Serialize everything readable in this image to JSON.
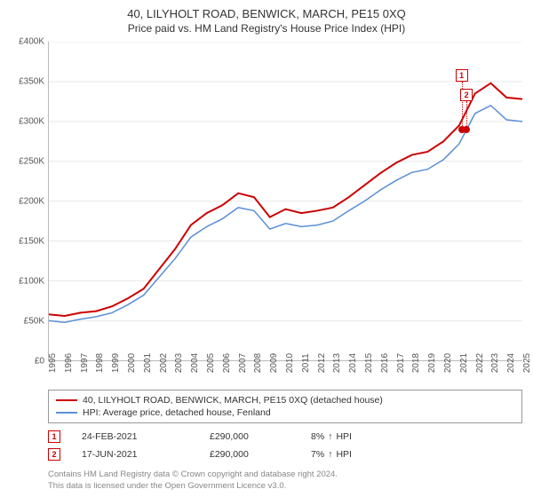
{
  "title": "40, LILYHOLT ROAD, BENWICK, MARCH, PE15 0XQ",
  "subtitle": "Price paid vs. HM Land Registry's House Price Index (HPI)",
  "chart": {
    "type": "line",
    "background_color": "#ffffff",
    "grid_color": "#e8e8e8",
    "axis_color": "#bbbbbb",
    "label_fontsize": 10,
    "title_fontsize": 13,
    "x": {
      "min": 1995,
      "max": 2025,
      "ticks": [
        1995,
        1996,
        1997,
        1998,
        1999,
        2000,
        2001,
        2002,
        2003,
        2004,
        2005,
        2006,
        2007,
        2008,
        2009,
        2010,
        2011,
        2012,
        2013,
        2014,
        2015,
        2016,
        2017,
        2018,
        2019,
        2020,
        2021,
        2022,
        2023,
        2024,
        2025
      ]
    },
    "y": {
      "min": 0,
      "max": 400000,
      "ticks": [
        0,
        50000,
        100000,
        150000,
        200000,
        250000,
        300000,
        350000,
        400000
      ],
      "tick_labels": [
        "£0",
        "£50K",
        "£100K",
        "£150K",
        "£200K",
        "£250K",
        "£300K",
        "£350K",
        "£400K"
      ]
    },
    "series": [
      {
        "name": "property",
        "label": "40, LILYHOLT ROAD, BENWICK, MARCH, PE15 0XQ (detached house)",
        "color": "#cc0000",
        "width": 2,
        "points": [
          [
            1995,
            58000
          ],
          [
            1996,
            56000
          ],
          [
            1997,
            60000
          ],
          [
            1998,
            62000
          ],
          [
            1999,
            68000
          ],
          [
            2000,
            78000
          ],
          [
            2001,
            90000
          ],
          [
            2002,
            115000
          ],
          [
            2003,
            140000
          ],
          [
            2004,
            170000
          ],
          [
            2005,
            185000
          ],
          [
            2006,
            195000
          ],
          [
            2007,
            210000
          ],
          [
            2008,
            205000
          ],
          [
            2009,
            180000
          ],
          [
            2010,
            190000
          ],
          [
            2011,
            185000
          ],
          [
            2012,
            188000
          ],
          [
            2013,
            192000
          ],
          [
            2014,
            205000
          ],
          [
            2015,
            220000
          ],
          [
            2016,
            235000
          ],
          [
            2017,
            248000
          ],
          [
            2018,
            258000
          ],
          [
            2019,
            262000
          ],
          [
            2020,
            275000
          ],
          [
            2021,
            295000
          ],
          [
            2022,
            335000
          ],
          [
            2023,
            348000
          ],
          [
            2024,
            330000
          ],
          [
            2025,
            328000
          ]
        ]
      },
      {
        "name": "hpi",
        "label": "HPI: Average price, detached house, Fenland",
        "color": "#5a8fd6",
        "width": 1.5,
        "points": [
          [
            1995,
            50000
          ],
          [
            1996,
            48000
          ],
          [
            1997,
            52000
          ],
          [
            1998,
            55000
          ],
          [
            1999,
            60000
          ],
          [
            2000,
            70000
          ],
          [
            2001,
            82000
          ],
          [
            2002,
            105000
          ],
          [
            2003,
            128000
          ],
          [
            2004,
            155000
          ],
          [
            2005,
            168000
          ],
          [
            2006,
            178000
          ],
          [
            2007,
            192000
          ],
          [
            2008,
            188000
          ],
          [
            2009,
            165000
          ],
          [
            2010,
            172000
          ],
          [
            2011,
            168000
          ],
          [
            2012,
            170000
          ],
          [
            2013,
            175000
          ],
          [
            2014,
            188000
          ],
          [
            2015,
            200000
          ],
          [
            2016,
            214000
          ],
          [
            2017,
            226000
          ],
          [
            2018,
            236000
          ],
          [
            2019,
            240000
          ],
          [
            2020,
            252000
          ],
          [
            2021,
            272000
          ],
          [
            2022,
            310000
          ],
          [
            2023,
            320000
          ],
          [
            2024,
            302000
          ],
          [
            2025,
            300000
          ]
        ]
      }
    ],
    "sale_markers": [
      {
        "num": "1",
        "x": 2021.15,
        "y": 290000,
        "color": "#cc0000",
        "badge_y_offset": -54
      },
      {
        "num": "2",
        "x": 2021.46,
        "y": 290000,
        "color": "#cc0000",
        "badge_y_offset": -32
      }
    ]
  },
  "legend": {
    "series1_label": "40, LILYHOLT ROAD, BENWICK, MARCH, PE15 0XQ (detached house)",
    "series2_label": "HPI: Average price, detached house, Fenland"
  },
  "sales": [
    {
      "num": "1",
      "date": "24-FEB-2021",
      "price": "£290,000",
      "pct": "8%",
      "arrow": "↑",
      "suffix": "HPI",
      "color": "#cc0000"
    },
    {
      "num": "2",
      "date": "17-JUN-2021",
      "price": "£290,000",
      "pct": "7%",
      "arrow": "↑",
      "suffix": "HPI",
      "color": "#cc0000"
    }
  ],
  "footer": {
    "line1": "Contains HM Land Registry data © Crown copyright and database right 2024.",
    "line2": "This data is licensed under the Open Government Licence v3.0."
  }
}
